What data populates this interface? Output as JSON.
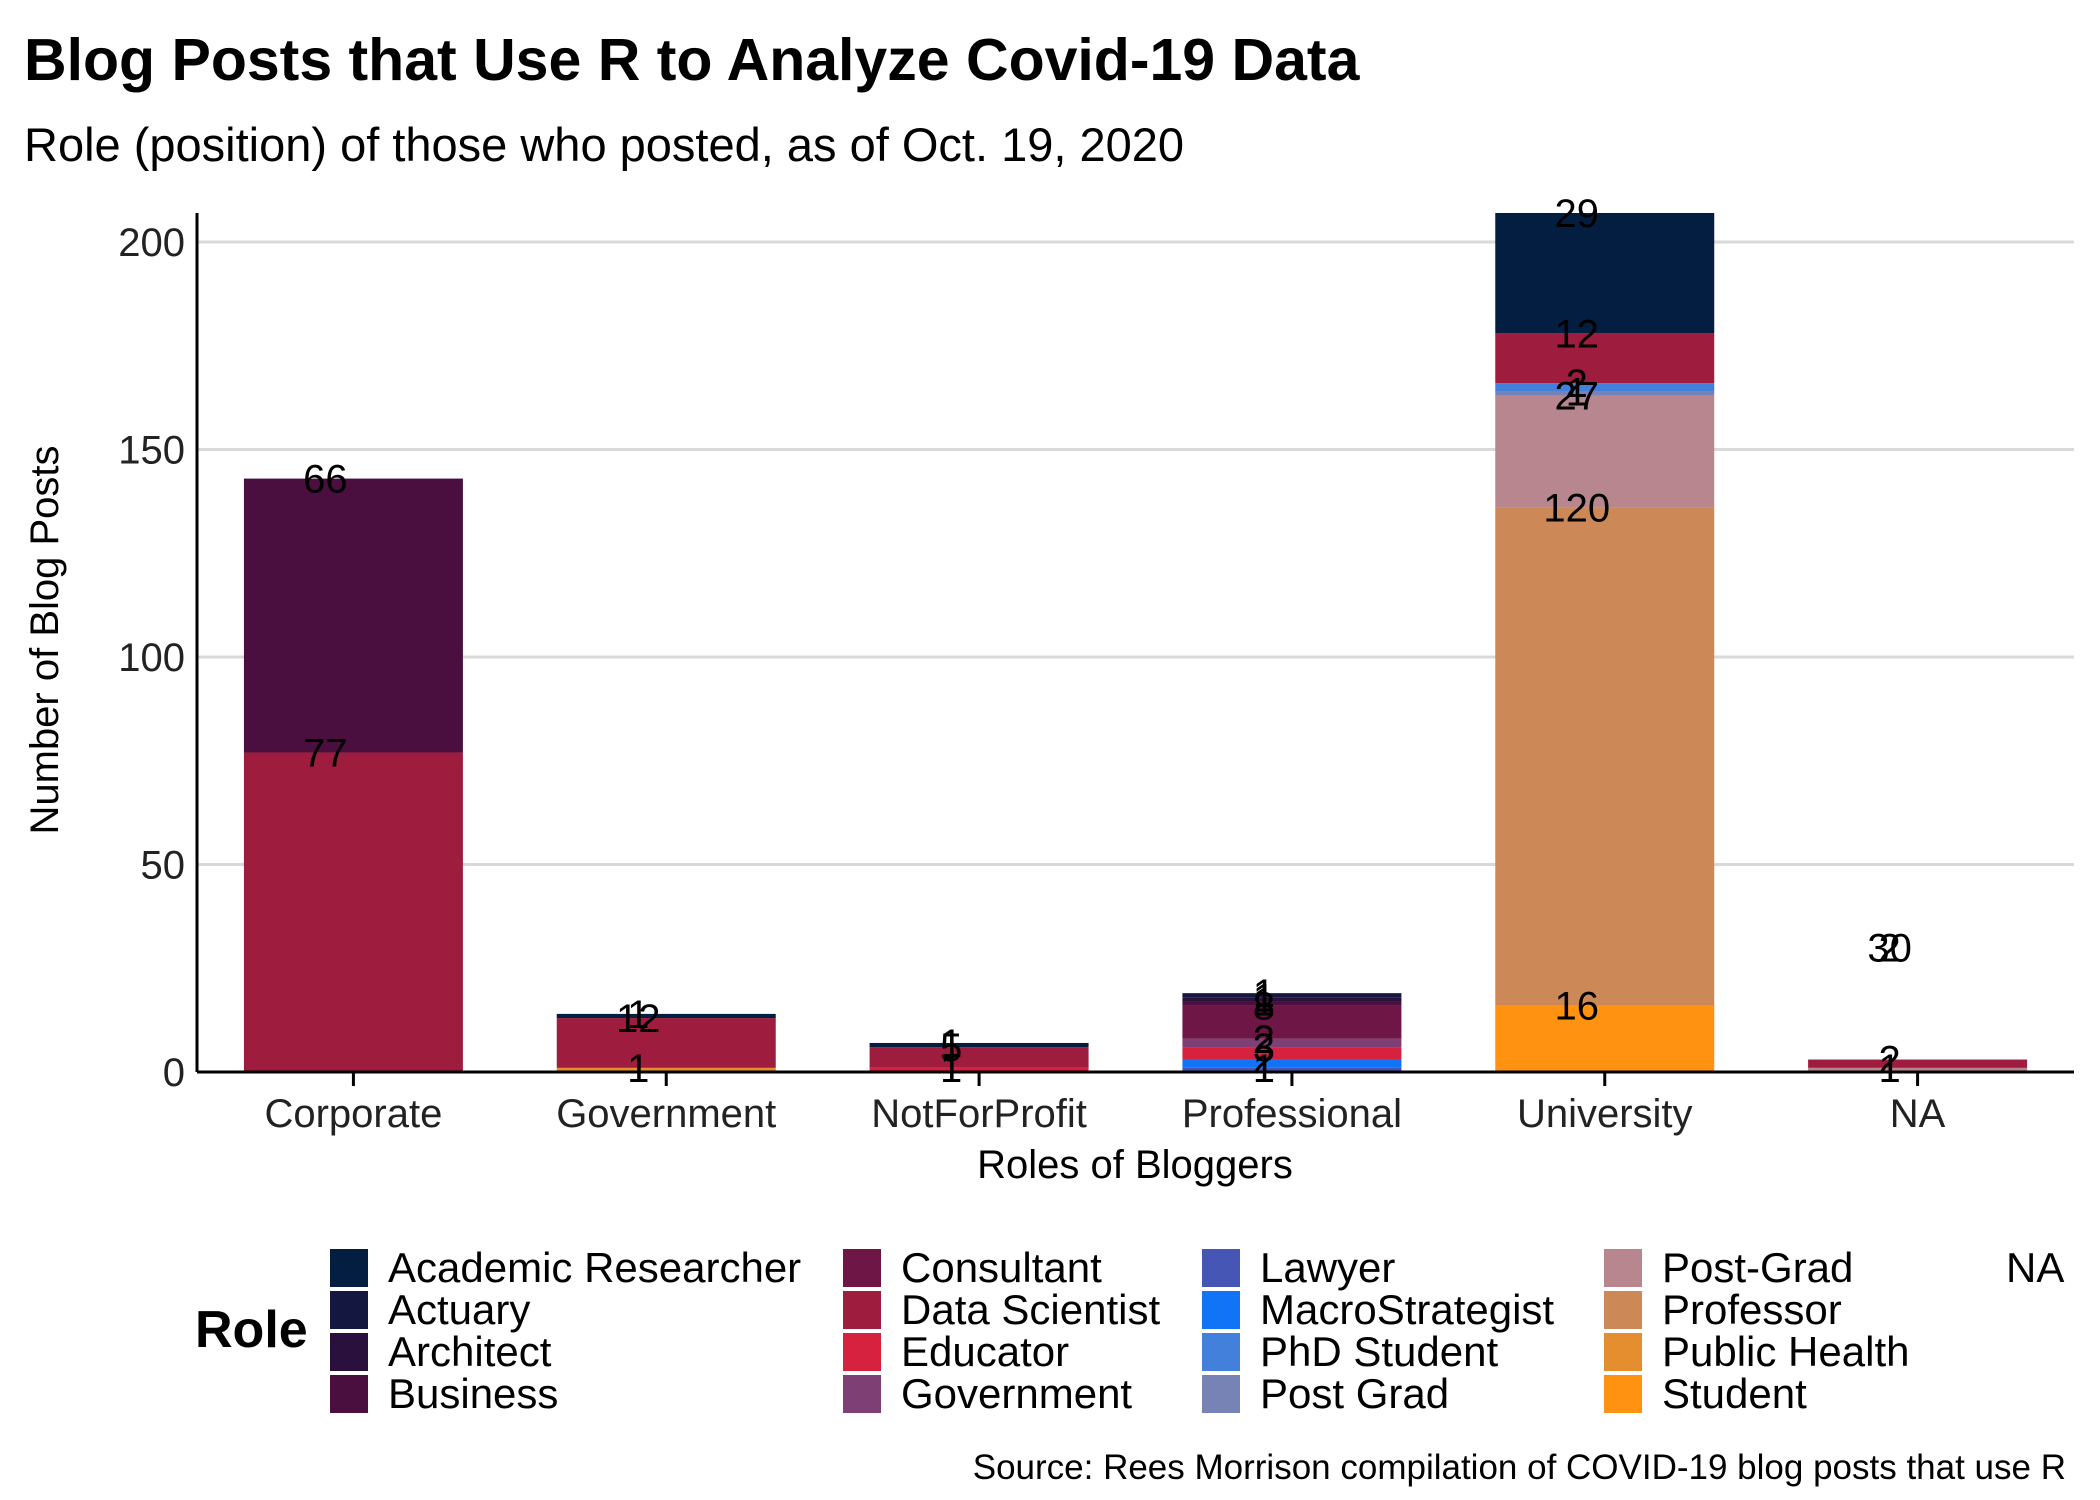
{
  "title": "Blog Posts that Use R to Analyze Covid-19 Data",
  "subtitle": "Role (position) of those who posted, as of Oct. 19, 2020",
  "caption": "Source: Rees Morrison compilation of COVID-19 blog posts that use R",
  "chart_data": {
    "type": "bar",
    "stacked": true,
    "xlabel": "Roles of Bloggers",
    "ylabel": "Number of Blog Posts",
    "ylim": [
      0,
      207
    ],
    "yticks": [
      0,
      50,
      100,
      150,
      200
    ],
    "grid": "horizontal",
    "categories": [
      "Corporate",
      "Government",
      "NotForProfit",
      "Professional",
      "University",
      "NA"
    ],
    "legend": {
      "title": "Role",
      "position": "bottom",
      "entries": [
        {
          "name": "Academic Researcher",
          "color": "#041E42"
        },
        {
          "name": "Actuary",
          "color": "#14173F"
        },
        {
          "name": "Architect",
          "color": "#2A113D"
        },
        {
          "name": "Business",
          "color": "#4A0E3F"
        },
        {
          "name": "Consultant",
          "color": "#6E1646"
        },
        {
          "name": "Data Scientist",
          "color": "#9E1C3E"
        },
        {
          "name": "Educator",
          "color": "#D6223F"
        },
        {
          "name": "Government",
          "color": "#7E3F75"
        },
        {
          "name": "Lawyer",
          "color": "#4556B4"
        },
        {
          "name": "MacroStrategist",
          "color": "#1173F5"
        },
        {
          "name": "PhD Student",
          "color": "#4380DB"
        },
        {
          "name": "Post Grad",
          "color": "#7683B4"
        },
        {
          "name": "Post-Grad",
          "color": "#B7868F"
        },
        {
          "name": "Professor",
          "color": "#CC8957"
        },
        {
          "name": "Public Health",
          "color": "#E58E30"
        },
        {
          "name": "Student",
          "color": "#FF9311"
        },
        {
          "name": "NA",
          "color": "#FFFFFF"
        }
      ]
    },
    "bars": [
      {
        "category": "Corporate",
        "segments": [
          {
            "role": "Data Scientist",
            "value": 77,
            "label": "77"
          },
          {
            "role": "Business",
            "value": 66,
            "label": "66"
          }
        ]
      },
      {
        "category": "Government",
        "segments": [
          {
            "role": "Public Health",
            "value": 1,
            "label": "1"
          },
          {
            "role": "Data Scientist",
            "value": 12,
            "label": "12"
          },
          {
            "role": "Academic Researcher",
            "value": 1,
            "label": "1"
          }
        ]
      },
      {
        "category": "NotForProfit",
        "segments": [
          {
            "role": "Educator",
            "value": 1,
            "label": "1"
          },
          {
            "role": "Data Scientist",
            "value": 5,
            "label": "5"
          },
          {
            "role": "Academic Researcher",
            "value": 1,
            "label": "1"
          }
        ]
      },
      {
        "category": "Professional",
        "segments": [
          {
            "role": "Lawyer",
            "value": 1,
            "label": "1"
          },
          {
            "role": "MacroStrategist",
            "value": 2,
            "label": "2"
          },
          {
            "role": "Educator",
            "value": 3,
            "label": "3"
          },
          {
            "role": "Government",
            "value": 2,
            "label": "2"
          },
          {
            "role": "Consultant",
            "value": 8,
            "label": "8"
          },
          {
            "role": "Business",
            "value": 1,
            "label": "1"
          },
          {
            "role": "Architect",
            "value": 1,
            "label": "1"
          },
          {
            "role": "Actuary",
            "value": 1,
            "label": "1"
          }
        ]
      },
      {
        "category": "University",
        "segments": [
          {
            "role": "Student",
            "value": 16,
            "label": "16"
          },
          {
            "role": "Professor",
            "value": 120,
            "label": "120"
          },
          {
            "role": "Post-Grad",
            "value": 27,
            "label": "27"
          },
          {
            "role": "Post Grad",
            "value": 1,
            "label": "1"
          },
          {
            "role": "PhD Student",
            "value": 2,
            "label": "2"
          },
          {
            "role": "Data Scientist",
            "value": 12,
            "label": "12"
          },
          {
            "role": "Academic Researcher",
            "value": 29,
            "label": "29"
          }
        ]
      },
      {
        "category": "NA",
        "segments": [
          {
            "role": "Post-Grad",
            "value": 1,
            "label": "1"
          },
          {
            "role": "Data Scientist",
            "value": 2,
            "label": "2"
          }
        ]
      }
    ],
    "na_bar_labels": [
      "30",
      "2"
    ]
  }
}
